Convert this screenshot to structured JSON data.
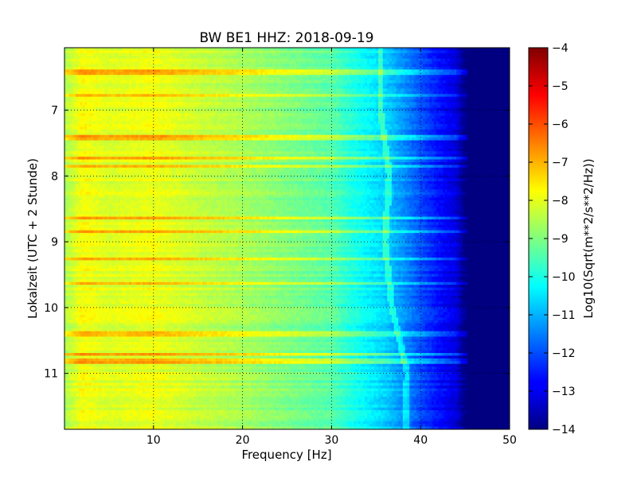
{
  "chart_data": {
    "type": "heatmap",
    "title": "BW BE1 HHZ: 2018-09-19",
    "xlabel": "Frequency [Hz]",
    "ylabel": "Lokalzeit (UTC + 2 Stunde)",
    "xlim": [
      0,
      50
    ],
    "ylim": [
      11.85,
      6.05
    ],
    "y_inverted": true,
    "xticks": [
      10,
      20,
      30,
      40,
      50
    ],
    "yticks": [
      7,
      8,
      9,
      10,
      11
    ],
    "grid": true,
    "colormap": "jet",
    "colorbar": {
      "label": "Log10(Sqrt(m**2/s**2/Hz))",
      "range": [
        -14,
        -4
      ],
      "ticks": [
        -4,
        -5,
        -6,
        -7,
        -8,
        -9,
        -10,
        -11,
        -12,
        -13,
        -14
      ]
    },
    "spectrum_profile": {
      "frequency_hz": [
        0,
        2,
        5,
        10,
        15,
        20,
        25,
        30,
        32,
        34,
        36,
        38,
        40,
        42,
        44,
        45,
        50
      ],
      "log10_amplitude": [
        -8.6,
        -7.8,
        -8.1,
        -7.9,
        -8.3,
        -8.6,
        -9.0,
        -9.4,
        -9.9,
        -10.3,
        -10.7,
        -11.3,
        -12.0,
        -12.6,
        -13.1,
        -14.0,
        -14.0
      ]
    },
    "high_noise_bands_local_time": [
      6.42,
      6.78,
      7.42,
      7.72,
      7.85,
      8.65,
      8.85,
      9.27,
      9.63,
      10.4,
      10.72,
      10.82
    ],
    "tremor_track": {
      "local_time": [
        7.0,
        8.0,
        9.0,
        10.0,
        11.0,
        11.8
      ],
      "frequency_hz": [
        35.5,
        36.5,
        36.0,
        36.8,
        38.5,
        38.3
      ]
    },
    "colors": {
      "background": "#ffffff",
      "axes": "#000000",
      "dark_saturated": "#000080"
    }
  }
}
